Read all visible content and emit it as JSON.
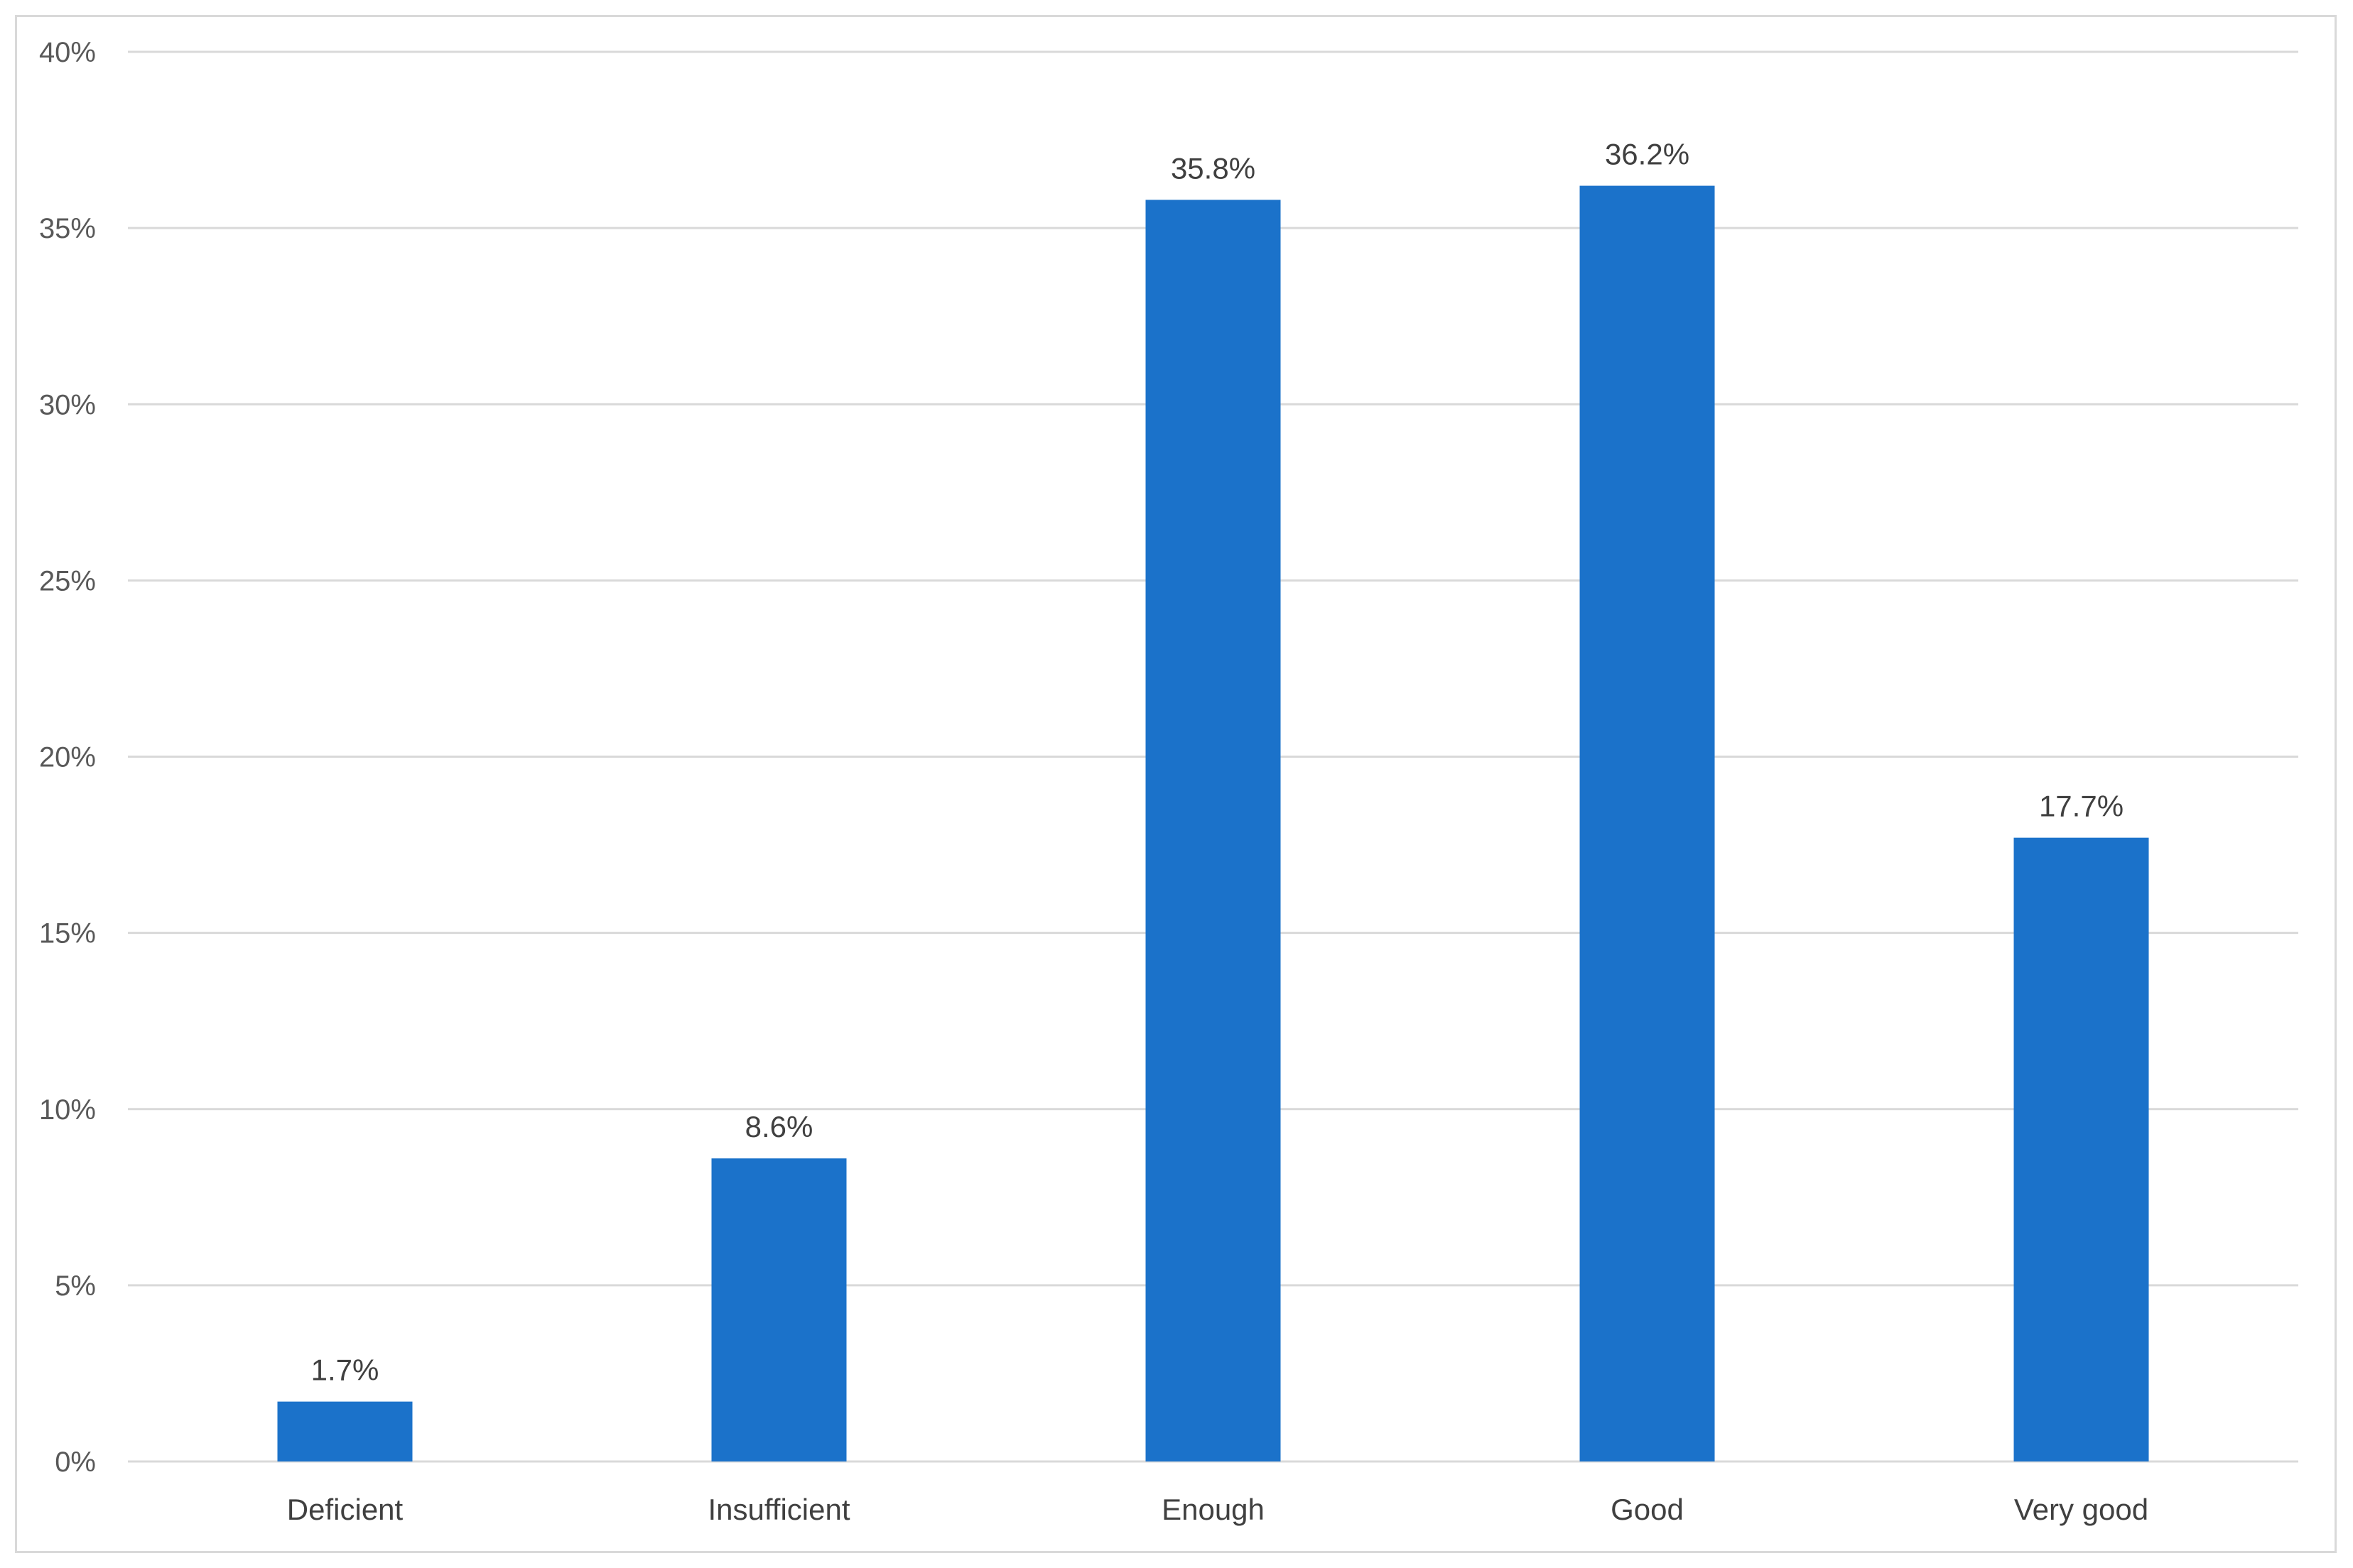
{
  "chart_data": {
    "type": "bar",
    "title": "",
    "xlabel": "",
    "ylabel": "",
    "categories": [
      "Deficient",
      "Insufficient",
      "Enough",
      "Good",
      "Very good"
    ],
    "values": [
      1.7,
      8.6,
      35.8,
      36.2,
      17.7
    ],
    "value_labels": [
      "1.7%",
      "8.6%",
      "35.8%",
      "36.2%",
      "17.7%"
    ],
    "ylim": [
      0,
      40
    ],
    "y_ticks": [
      0,
      5,
      10,
      15,
      20,
      25,
      30,
      35,
      40
    ],
    "y_tick_labels": [
      "0%",
      "5%",
      "10%",
      "15%",
      "20%",
      "25%",
      "30%",
      "35%",
      "40%"
    ],
    "grid": true,
    "legend": "none",
    "colors": {
      "bar": "#1b72ca",
      "grid": "#d9d9d9",
      "frame": "#d9d9d9"
    }
  }
}
